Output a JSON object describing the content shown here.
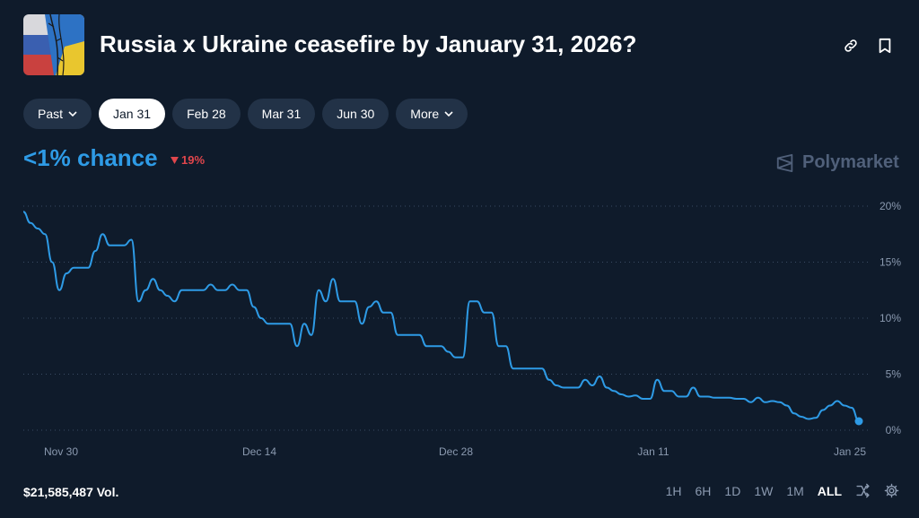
{
  "header": {
    "title": "Russia x Ukraine ceasefire by January 31, 2026?",
    "icon": "market-flag-image",
    "actions": [
      {
        "name": "link-icon"
      },
      {
        "name": "bookmark-icon"
      }
    ]
  },
  "tabs": [
    {
      "label": "Past",
      "dropdown": true,
      "active": false
    },
    {
      "label": "Jan 31",
      "dropdown": false,
      "active": true
    },
    {
      "label": "Feb 28",
      "dropdown": false,
      "active": false
    },
    {
      "label": "Mar 31",
      "dropdown": false,
      "active": false
    },
    {
      "label": "Jun 30",
      "dropdown": false,
      "active": false
    },
    {
      "label": "More",
      "dropdown": true,
      "active": false
    }
  ],
  "summary": {
    "chance": "<1% chance",
    "change": "19%",
    "change_direction": "down"
  },
  "brand": {
    "name": "Polymarket"
  },
  "chart_data": {
    "type": "line",
    "title": "",
    "xlabel": "",
    "ylabel": "",
    "x_ticks": [
      "Nov 30",
      "Dec 14",
      "Dec 28",
      "Jan 11",
      "Jan 25"
    ],
    "y_ticks": [
      "20%",
      "15%",
      "10%",
      "5%",
      "0%"
    ],
    "ylim": [
      0,
      20
    ],
    "grid": true,
    "line_color": "#2e9be6",
    "series": [
      {
        "values": [
          19.5,
          18.5,
          18,
          17.5,
          15,
          12.5,
          14,
          14.5,
          14.5,
          14.5,
          16,
          17.5,
          16.5,
          16.5,
          16.5,
          17,
          11.5,
          12.5,
          13.5,
          12.5,
          12,
          11.5,
          12.5,
          12.5,
          12.5,
          12.5,
          13,
          12.5,
          12.5,
          13,
          12.5,
          12.5,
          11,
          10,
          9.5,
          9.5,
          9.5,
          9.5,
          7.5,
          9.5,
          8.5,
          12.5,
          11.5,
          13.5,
          11.5,
          11.5,
          11.5,
          9.5,
          11,
          11.5,
          10.5,
          10.5,
          8.5,
          8.5,
          8.5,
          8.5,
          7.5,
          7.5,
          7.5,
          7,
          6.5,
          6.5,
          11.5,
          11.5,
          10.5,
          10.5,
          7.5,
          7.5,
          5.5,
          5.5,
          5.5,
          5.5,
          5.5,
          4.5,
          4,
          3.8,
          3.8,
          3.8,
          4.5,
          4,
          4.8,
          3.8,
          3.5,
          3.2,
          3,
          3.1,
          2.8,
          2.8,
          4.5,
          3.5,
          3.5,
          3,
          3,
          3.8,
          3,
          3,
          2.9,
          2.9,
          2.9,
          2.8,
          2.8,
          2.5,
          2.9,
          2.5,
          2.6,
          2.5,
          2.2,
          1.5,
          1.2,
          1,
          1.1,
          1.8,
          2.2,
          2.6,
          2.2,
          2,
          0.8
        ]
      }
    ]
  },
  "footer": {
    "volume": "$21,585,487 Vol.",
    "ranges": [
      {
        "label": "1H",
        "active": false
      },
      {
        "label": "6H",
        "active": false
      },
      {
        "label": "1D",
        "active": false
      },
      {
        "label": "1W",
        "active": false
      },
      {
        "label": "1M",
        "active": false
      },
      {
        "label": "ALL",
        "active": true
      }
    ],
    "tools": [
      {
        "name": "shuffle-icon"
      },
      {
        "name": "settings-gear-icon"
      }
    ]
  }
}
